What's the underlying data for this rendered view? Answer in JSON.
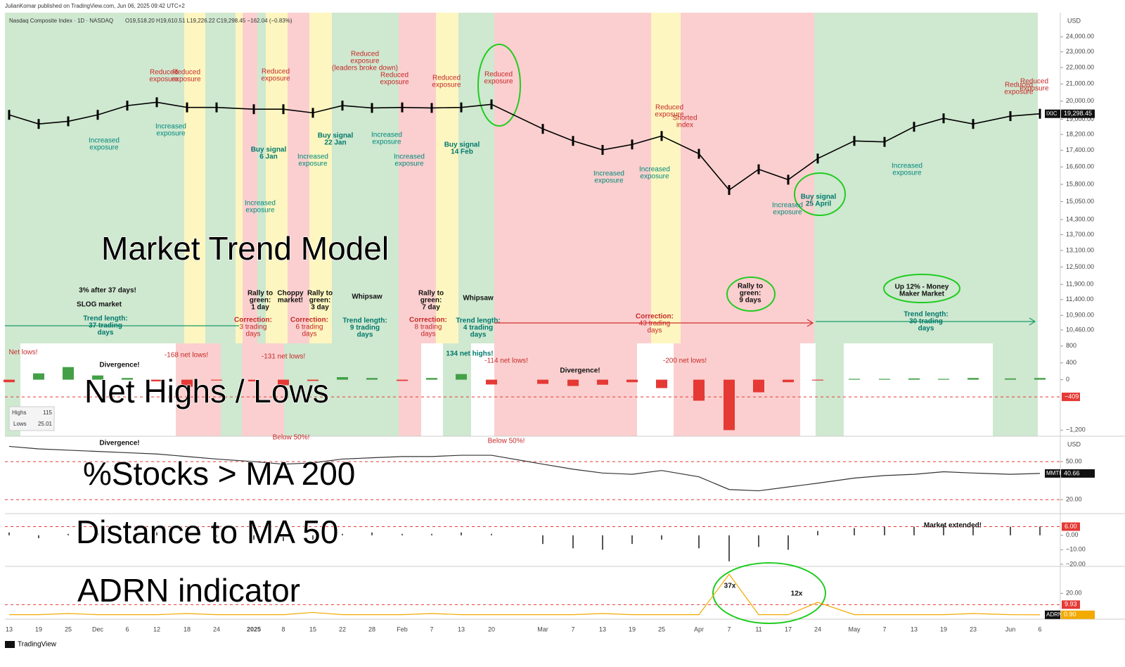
{
  "header": {
    "publisher": "JulianKomar published on TradingView.com, Jun 06, 2025 09:42 UTC+2",
    "symbol": "Nasdaq Composite Index · 1D · NASDAQ",
    "ohlc": "O19,518.20  H19,610.51  L19,226.22  C19,298.45  −162.04 (−0.83%)"
  },
  "chart_data": [
    {
      "type": "line",
      "title": "Market Trend Model",
      "unit": "USD",
      "symbol_tag": "IXIC",
      "last_value": {
        "value": 19298.45,
        "label": "19,298.45"
      },
      "log_scale": true,
      "color": "#000000",
      "values": [
        19240,
        18750,
        18890,
        19240,
        19750,
        19940,
        19650,
        19650,
        19550,
        19550,
        19350,
        19750,
        19620,
        19650,
        19620,
        19650,
        19820,
        18490,
        17870,
        17420,
        17690,
        18120,
        17230,
        15550,
        16490,
        16010,
        17000,
        17870,
        17820,
        18600,
        19050,
        18750,
        19170,
        19298.45
      ],
      "ylim": [
        10070,
        25700
      ],
      "yticks": [
        {
          "value": 24000,
          "label": "24,000.00"
        },
        {
          "value": 23000,
          "label": "23,000.00"
        },
        {
          "value": 22000,
          "label": "22,000.00"
        },
        {
          "value": 21000,
          "label": "21,000.00"
        },
        {
          "value": 20000,
          "label": "20,000.00"
        },
        {
          "value": 19000,
          "label": "19,000.00"
        },
        {
          "value": 18200,
          "label": "18,200.00"
        },
        {
          "value": 17400,
          "label": "17,400.00"
        },
        {
          "value": 16600,
          "label": "16,600.00"
        },
        {
          "value": 15800,
          "label": "15,800.00"
        },
        {
          "value": 15050,
          "label": "15,050.00"
        },
        {
          "value": 14300,
          "label": "14,300.00"
        },
        {
          "value": 13700,
          "label": "13,700.00"
        },
        {
          "value": 13100,
          "label": "13,100.00"
        },
        {
          "value": 12500,
          "label": "12,500.00"
        },
        {
          "value": 11900,
          "label": "11,900.00"
        },
        {
          "value": 11400,
          "label": "11,400.00"
        },
        {
          "value": 10900,
          "label": "10,900.00"
        },
        {
          "value": 10460,
          "label": "10,460.00"
        }
      ]
    },
    {
      "type": "bar",
      "title": "Net Highs / Lows",
      "color_up": "#43a047",
      "color_down": "#e53935",
      "values": [
        -60,
        150,
        300,
        100,
        40,
        -40,
        -168,
        -20,
        -40,
        -131,
        -30,
        60,
        40,
        -30,
        40,
        134,
        -114,
        -100,
        -150,
        -120,
        -60,
        -200,
        -500,
        -1200,
        -300,
        -60,
        -20,
        20,
        20,
        30,
        20,
        40,
        30,
        40
      ],
      "ylim": [
        -1345,
        864
      ],
      "yticks": [
        800,
        400,
        0,
        {
          "value": -1200,
          "label": "−1,200"
        }
      ],
      "reference_lines": [
        {
          "value": -409,
          "label": "−409"
        }
      ]
    },
    {
      "type": "line",
      "title": "%Stocks > MA 200",
      "unit": "USD",
      "symbol_tag": "MMTH",
      "last_value": 40.66,
      "color": "#333333",
      "values": [
        62,
        60,
        59,
        58,
        57,
        56,
        54,
        52,
        50,
        48,
        49,
        52,
        53,
        54,
        54,
        55,
        55,
        48,
        44,
        41,
        40,
        43,
        38,
        28,
        27,
        30,
        33,
        37,
        39,
        40,
        42,
        41,
        40,
        40.66
      ],
      "ylim": [
        9,
        70
      ],
      "yticks": [
        {
          "value": 50,
          "label": "50.00"
        },
        {
          "value": 20,
          "label": "20.00"
        }
      ]
    },
    {
      "type": "bar",
      "title": "Distance to MA 50",
      "color_up": "#555555",
      "color_down": "#555555",
      "values": [
        2,
        -2,
        1,
        2,
        3,
        2,
        -2,
        -1,
        -3,
        -4,
        -3,
        1,
        2,
        1,
        1,
        2,
        1,
        -6,
        -9,
        -10,
        -6,
        -3,
        -9,
        -18,
        -8,
        -10,
        3,
        5,
        6,
        6,
        7,
        6,
        6,
        6
      ],
      "ylim": [
        -21.5,
        15
      ],
      "yticks": [
        {
          "value": 0,
          "label": "0.00"
        },
        {
          "value": -10,
          "label": "−10.00"
        },
        {
          "value": -20,
          "label": "−20.00"
        }
      ],
      "reference_lines": [
        {
          "value": 6,
          "label": "6.00"
        }
      ]
    },
    {
      "type": "line",
      "title": "ADRN indicator",
      "symbol_tag": "ADRN",
      "last_value": {
        "value": 0.9,
        "label": "0.90"
      },
      "color": "#f2a900",
      "values": [
        1,
        1,
        2,
        1,
        1,
        1,
        2,
        1,
        1,
        1,
        3,
        1,
        1,
        1,
        2,
        1,
        1,
        1,
        1,
        2,
        1,
        1,
        1,
        37,
        1,
        1,
        12,
        1,
        1,
        1,
        1,
        2,
        1,
        0.9
      ],
      "ylim": [
        -3,
        44
      ],
      "yticks": [
        {
          "value": 20,
          "label": "20.00"
        }
      ],
      "reference_lines": [
        {
          "value": 9.93,
          "label": "9.93"
        }
      ],
      "categories": [
        "13",
        "19",
        "25",
        "Dec",
        "6",
        "12",
        "18",
        "24",
        "2025",
        "8",
        "15",
        "22",
        "28",
        "Feb",
        "7",
        "13",
        "20",
        "Mar",
        "7",
        "13",
        "19",
        "25",
        "Apr",
        "7",
        "11",
        "17",
        "24",
        "May",
        "7",
        "13",
        "19",
        "23",
        "Jun",
        "6"
      ]
    }
  ],
  "annotations": [
    {
      "lines": [
        "Reduced",
        "exposure"
      ]
    },
    {
      "lines": [
        "Reduced",
        "exposure"
      ]
    },
    {
      "lines": [
        "Increased",
        "exposure"
      ]
    },
    {
      "lines": [
        "Increased",
        "exposure"
      ]
    },
    {
      "lines": [
        "Reduced",
        "exposure"
      ]
    },
    {
      "lines": [
        "Buy signal",
        "6 Jan"
      ]
    },
    {
      "lines": [
        "Increased",
        "exposure"
      ]
    },
    {
      "lines": [
        "Buy signal",
        "22 Jan"
      ]
    },
    {
      "lines": [
        "Increased",
        "exposure"
      ]
    },
    {
      "lines": [
        "Reduced",
        "exposure",
        "(leaders broke down)"
      ]
    },
    {
      "lines": [
        "Reduced",
        "exposure"
      ]
    },
    {
      "lines": [
        "Increased",
        "exposure"
      ]
    },
    {
      "lines": [
        "Increased",
        "exposure"
      ]
    },
    {
      "lines": [
        "Reduced",
        "exposure"
      ]
    },
    {
      "lines": [
        "Buy signal",
        "14 Feb"
      ]
    },
    {
      "lines": [
        "Reduced",
        "exposure"
      ]
    },
    {
      "lines": [
        "Increased",
        "exposure"
      ]
    },
    {
      "lines": [
        "Increased",
        "exposure"
      ]
    },
    {
      "lines": [
        "Reduced",
        "exposure"
      ]
    },
    {
      "lines": [
        "Shorted",
        "index"
      ]
    },
    {
      "lines": [
        "Increased",
        "exposure"
      ]
    },
    {
      "lines": [
        "Buy signal",
        "25 April"
      ]
    },
    {
      "lines": [
        "Increased",
        "exposure"
      ]
    },
    {
      "lines": [
        "Reduced",
        "exposure"
      ]
    },
    {
      "lines": [
        "Reduced",
        "exposure"
      ]
    },
    {
      "lines": [
        "3% after 37 days!"
      ]
    },
    {
      "lines": [
        "SLOG market"
      ]
    },
    {
      "lines": [
        "Trend length:",
        "37 trading",
        "days"
      ]
    },
    {
      "lines": [
        "Rally to",
        "green:",
        "1 day"
      ]
    },
    {
      "lines": [
        "Choppy",
        "market!"
      ]
    },
    {
      "lines": [
        "Rally to",
        "green:",
        "3 day"
      ]
    },
    {
      "lines": [
        "Whipsaw"
      ]
    },
    {
      "lines": [
        "Rally to",
        "green:",
        "7 day"
      ]
    },
    {
      "lines": [
        "Whipsaw"
      ]
    },
    {
      "lines": [
        "Correction:",
        "3 trading",
        "days"
      ]
    },
    {
      "lines": [
        "Correction:",
        "6 trading",
        "days"
      ]
    },
    {
      "lines": [
        "Trend length:",
        "9 trading",
        "days"
      ]
    },
    {
      "lines": [
        "Correction:",
        "8 trading",
        "days"
      ]
    },
    {
      "lines": [
        "Trend length:",
        "4 trading",
        "days"
      ]
    },
    {
      "lines": [
        "Correction:",
        "43 trading",
        "days"
      ]
    },
    {
      "lines": [
        "Rally to",
        "green:",
        "9 days"
      ]
    },
    {
      "lines": [
        "Up 12% - Money",
        "Maker Market"
      ]
    },
    {
      "lines": [
        "Trend length:",
        "30 trading",
        "days"
      ]
    },
    {
      "lines": [
        "Net lows!"
      ]
    },
    {
      "lines": [
        "Divergence!"
      ]
    },
    {
      "lines": [
        "-168 net lows!"
      ]
    },
    {
      "lines": [
        "-131 net lows!"
      ]
    },
    {
      "lines": [
        "134 net highs!"
      ]
    },
    {
      "lines": [
        "-114 net lows!"
      ]
    },
    {
      "lines": [
        "Divergence!"
      ]
    },
    {
      "lines": [
        "-200 net lows!"
      ]
    },
    {
      "lines": [
        "Divergence!"
      ]
    },
    {
      "lines": [
        "Below 50%!"
      ]
    },
    {
      "lines": [
        "Below 50%!"
      ]
    },
    {
      "lines": [
        "Market extended!"
      ]
    },
    {
      "lines": [
        "37x"
      ]
    },
    {
      "lines": [
        "12x"
      ]
    }
  ],
  "legend_box": {
    "highs_label": "Highs",
    "highs": 115,
    "lows_label": "Lows",
    "lows": 25.01
  },
  "footer": "TradingView"
}
